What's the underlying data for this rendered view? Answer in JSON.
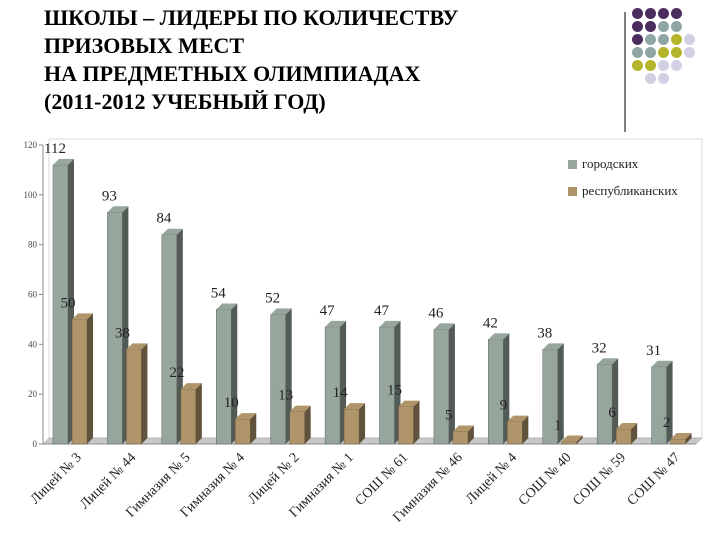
{
  "title_lines": [
    "ШКОЛЫ – ЛИДЕРЫ ПО КОЛИЧЕСТВУ",
    "ПРИЗОВЫХ МЕСТ",
    "НА ПРЕДМЕТНЫХ ОЛИМПИАДАХ",
    "(2011-2012 УЧЕБНЫЙ ГОД)"
  ],
  "colors": {
    "purple": "#4b2c5e",
    "teal": "#8fa6a4",
    "olive": "#b5b52b",
    "lilac": "#d4d0e4",
    "series_city": "#97a69d",
    "series_rep": "#b0956b"
  },
  "decoration_grid": [
    [
      "purple",
      "purple",
      "purple",
      "purple",
      ""
    ],
    [
      "purple",
      "purple",
      "teal",
      "teal",
      ""
    ],
    [
      "purple",
      "teal",
      "teal",
      "olive",
      "lilac"
    ],
    [
      "teal",
      "teal",
      "olive",
      "olive",
      "lilac"
    ],
    [
      "olive",
      "olive",
      "lilac",
      "lilac",
      ""
    ],
    [
      "",
      "lilac",
      "lilac",
      "",
      ""
    ]
  ],
  "chart_data": {
    "type": "bar",
    "style": "3d-clustered",
    "categories": [
      "Лицей № 3",
      "Лицей № 44",
      "Гимназия № 5",
      "Гимназия № 4",
      "Лицей № 2",
      "Гимназия № 1",
      "СОШ № 61",
      "Гимназия № 46",
      "Лицей № 4",
      "СОШ № 40",
      "СОШ № 59",
      "СОШ № 47"
    ],
    "series": [
      {
        "name": "городских",
        "color": "#97a69d",
        "values": [
          112,
          93,
          84,
          54,
          52,
          47,
          47,
          46,
          42,
          38,
          32,
          31
        ]
      },
      {
        "name": "республиканских",
        "color": "#b0956b",
        "values": [
          50,
          38,
          22,
          10,
          13,
          14,
          15,
          5,
          9,
          1,
          6,
          2
        ]
      }
    ],
    "yticks": [
      0,
      20,
      40,
      60,
      80,
      100,
      120
    ],
    "ylim": [
      0,
      120
    ],
    "legend_position": "top-right",
    "grid": false
  }
}
